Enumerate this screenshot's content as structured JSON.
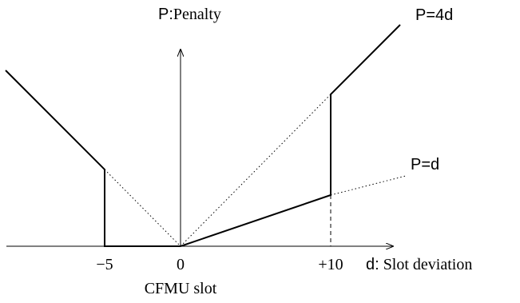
{
  "axis": {
    "y_label_prefix": "P:",
    "y_label_word": "Penalty",
    "x_label_prefix": "d:",
    "x_label_word": "Slot deviation"
  },
  "ticks": {
    "minus5": "−5",
    "zero": "0",
    "plus10": "+10"
  },
  "annotations": {
    "cfmu_slot": "CFMU slot",
    "line_steep": "P=4d",
    "line_shallow": "P=d"
  },
  "colors": {
    "stroke": "#000000",
    "background": "#ffffff"
  }
}
